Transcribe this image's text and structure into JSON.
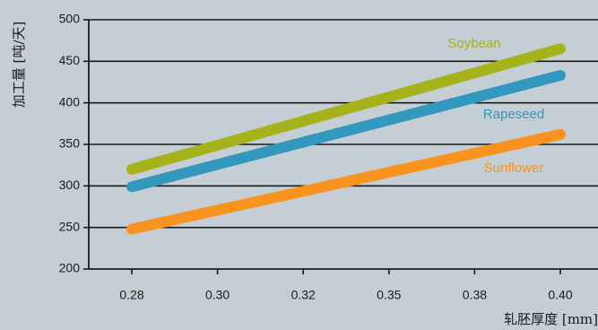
{
  "chart_data": {
    "type": "line",
    "title": "",
    "xlabel": "轧胚厚度 [mm]",
    "ylabel": "加工量 [吨/天]",
    "categories": [
      "0.28",
      "0.30",
      "0.32",
      "0.35",
      "0.38",
      "0.40"
    ],
    "x_ticks": [
      "0.28",
      "0.30",
      "0.32",
      "0.35",
      "0.38",
      "0.40"
    ],
    "y_ticks": [
      "200",
      "250",
      "300",
      "350",
      "400",
      "450",
      "500"
    ],
    "ylim": [
      200,
      500
    ],
    "grid": "horizontal",
    "series": [
      {
        "name": "Soybean",
        "color": "#a6b219",
        "start": 320,
        "end": 465
      },
      {
        "name": "Rapeseed",
        "color": "#3298be",
        "start": 299,
        "end": 433
      },
      {
        "name": "Sunflower",
        "color": "#f7931e",
        "start": 248,
        "end": 362
      }
    ]
  }
}
